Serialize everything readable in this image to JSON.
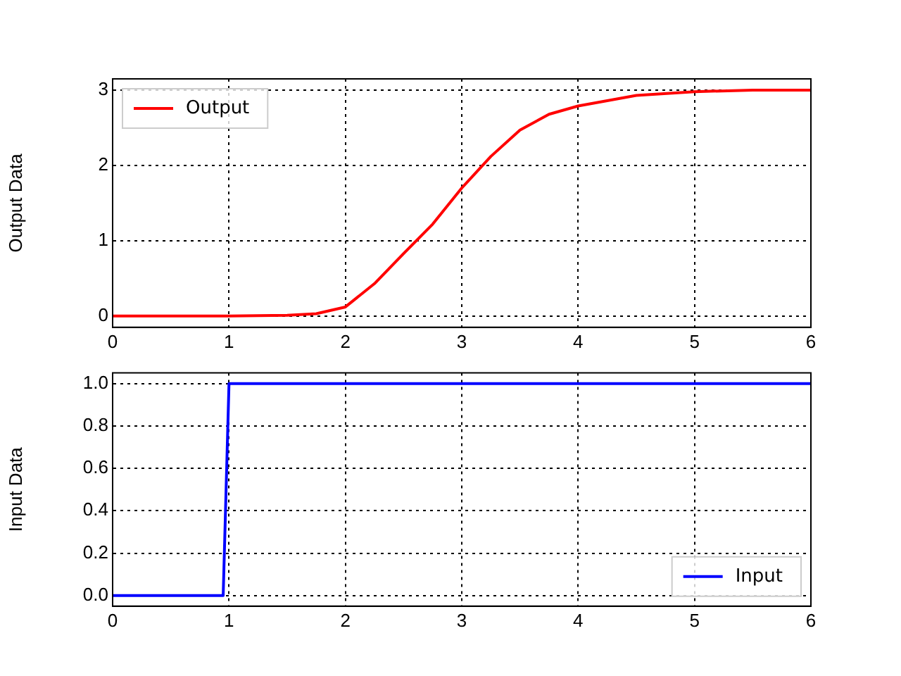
{
  "chart_data": [
    {
      "type": "line",
      "ylabel": "Output Data",
      "xlim": [
        0,
        6
      ],
      "xticks": [
        0,
        1,
        2,
        3,
        4,
        5,
        6
      ],
      "ylim": [
        -0.15,
        3.15
      ],
      "yticks": [
        0,
        1,
        2,
        3
      ],
      "grid": true,
      "legend": "top left",
      "line_style": "solid",
      "marker": "none",
      "series": [
        {
          "name": "Output",
          "color": "#ff0000",
          "x": [
            0,
            0.5,
            1,
            1.5,
            1.75,
            2,
            2.25,
            2.5,
            2.75,
            3,
            3.25,
            3.5,
            3.75,
            4,
            4.5,
            5,
            5.5,
            6
          ],
          "values": [
            0,
            0,
            0,
            0.01,
            0.03,
            0.12,
            0.43,
            0.83,
            1.22,
            1.7,
            2.12,
            2.47,
            2.68,
            2.79,
            2.93,
            2.98,
            3,
            3
          ]
        }
      ]
    },
    {
      "type": "line",
      "ylabel": "Input Data",
      "xlim": [
        0,
        6
      ],
      "xticks": [
        0,
        1,
        2,
        3,
        4,
        5,
        6
      ],
      "ylim": [
        -0.05,
        1.05
      ],
      "yticks": [
        {
          "value": 0,
          "label": "0.0"
        },
        {
          "value": 0.2,
          "label": "0.2"
        },
        {
          "value": 0.4,
          "label": "0.4"
        },
        {
          "value": 0.6,
          "label": "0.6"
        },
        {
          "value": 0.8,
          "label": "0.8"
        },
        {
          "value": 1,
          "label": "1.0"
        }
      ],
      "grid": true,
      "legend": "bottom right",
      "line_style": "solid",
      "marker": "none",
      "series": [
        {
          "name": "Input",
          "color": "#0000ff",
          "x": [
            0,
            0.95,
            1,
            6
          ],
          "values": [
            0,
            0,
            1,
            1
          ]
        }
      ]
    }
  ]
}
